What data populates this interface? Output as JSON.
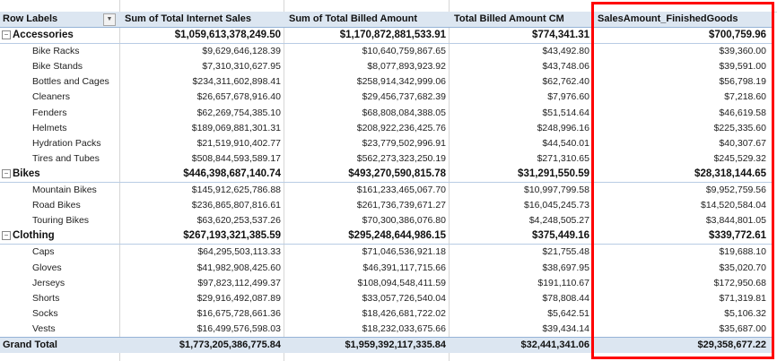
{
  "headers": {
    "row_labels": "Row Labels",
    "col1": "Sum of Total Internet Sales",
    "col2": "Sum of Total Billed Amount",
    "col3": "Total Billed Amount CM",
    "col4": "SalesAmount_FinishedGoods"
  },
  "highlight_color": "#ff0000",
  "groups": [
    {
      "label": "Accessories",
      "values": [
        "$1,059,613,378,249.50",
        "$1,170,872,881,533.91",
        "$774,341.31",
        "$700,759.96"
      ],
      "items": [
        {
          "label": "Bike Racks",
          "values": [
            "$9,629,646,128.39",
            "$10,640,759,867.65",
            "$43,492.80",
            "$39,360.00"
          ]
        },
        {
          "label": "Bike Stands",
          "values": [
            "$7,310,310,627.95",
            "$8,077,893,923.92",
            "$43,748.06",
            "$39,591.00"
          ]
        },
        {
          "label": "Bottles and Cages",
          "values": [
            "$234,311,602,898.41",
            "$258,914,342,999.06",
            "$62,762.40",
            "$56,798.19"
          ]
        },
        {
          "label": "Cleaners",
          "values": [
            "$26,657,678,916.40",
            "$29,456,737,682.39",
            "$7,976.60",
            "$7,218.60"
          ]
        },
        {
          "label": "Fenders",
          "values": [
            "$62,269,754,385.10",
            "$68,808,084,388.05",
            "$51,514.64",
            "$46,619.58"
          ]
        },
        {
          "label": "Helmets",
          "values": [
            "$189,069,881,301.31",
            "$208,922,236,425.76",
            "$248,996.16",
            "$225,335.60"
          ]
        },
        {
          "label": "Hydration Packs",
          "values": [
            "$21,519,910,402.77",
            "$23,779,502,996.91",
            "$44,540.01",
            "$40,307.67"
          ]
        },
        {
          "label": "Tires and Tubes",
          "values": [
            "$508,844,593,589.17",
            "$562,273,323,250.19",
            "$271,310.65",
            "$245,529.32"
          ]
        }
      ]
    },
    {
      "label": "Bikes",
      "values": [
        "$446,398,687,140.74",
        "$493,270,590,815.78",
        "$31,291,550.59",
        "$28,318,144.65"
      ],
      "items": [
        {
          "label": "Mountain Bikes",
          "values": [
            "$145,912,625,786.88",
            "$161,233,465,067.70",
            "$10,997,799.58",
            "$9,952,759.56"
          ]
        },
        {
          "label": "Road Bikes",
          "values": [
            "$236,865,807,816.61",
            "$261,736,739,671.27",
            "$16,045,245.73",
            "$14,520,584.04"
          ]
        },
        {
          "label": "Touring Bikes",
          "values": [
            "$63,620,253,537.26",
            "$70,300,386,076.80",
            "$4,248,505.27",
            "$3,844,801.05"
          ]
        }
      ]
    },
    {
      "label": "Clothing",
      "values": [
        "$267,193,321,385.59",
        "$295,248,644,986.15",
        "$375,449.16",
        "$339,772.61"
      ],
      "items": [
        {
          "label": "Caps",
          "values": [
            "$64,295,503,113.33",
            "$71,046,536,921.18",
            "$21,755.48",
            "$19,688.10"
          ]
        },
        {
          "label": "Gloves",
          "values": [
            "$41,982,908,425.60",
            "$46,391,117,715.66",
            "$38,697.95",
            "$35,020.70"
          ]
        },
        {
          "label": "Jerseys",
          "values": [
            "$97,823,112,499.37",
            "$108,094,548,411.59",
            "$191,110.67",
            "$172,950.68"
          ]
        },
        {
          "label": "Shorts",
          "values": [
            "$29,916,492,087.89",
            "$33,057,726,540.04",
            "$78,808.44",
            "$71,319.81"
          ]
        },
        {
          "label": "Socks",
          "values": [
            "$16,675,728,661.36",
            "$18,426,681,722.02",
            "$5,642.51",
            "$5,106.32"
          ]
        },
        {
          "label": "Vests",
          "values": [
            "$16,499,576,598.03",
            "$18,232,033,675.66",
            "$39,434.14",
            "$35,687.00"
          ]
        }
      ]
    }
  ],
  "grand_total": {
    "label": "Grand Total",
    "values": [
      "$1,773,205,386,775.84",
      "$1,959,392,117,335.84",
      "$32,441,341.06",
      "$29,358,677.22"
    ]
  }
}
